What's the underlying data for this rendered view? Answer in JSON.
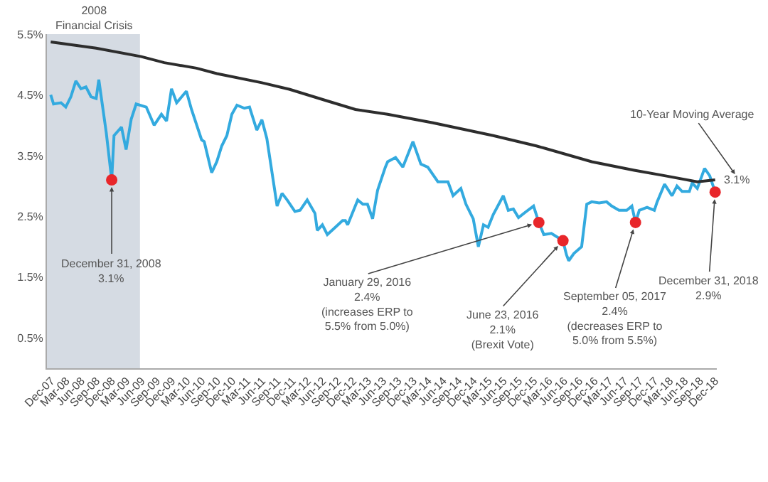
{
  "chart_data": {
    "type": "line",
    "xlim": [
      "2007-12-05",
      "2019-01-10"
    ],
    "ylim": [
      0,
      5.5
    ],
    "yticks": [
      {
        "value": 0.5,
        "label": "0.5%"
      },
      {
        "value": 1.5,
        "label": "1.5%"
      },
      {
        "value": 2.5,
        "label": "2.5%"
      },
      {
        "value": 3.5,
        "label": "3.5%"
      },
      {
        "value": 4.5,
        "label": "4.5%"
      },
      {
        "value": 5.5,
        "label": "5.5%"
      }
    ],
    "xticks": [
      {
        "value": "2007-12-31",
        "label": "Dec-07"
      },
      {
        "value": "2008-03-31",
        "label": "Mar-08"
      },
      {
        "value": "2008-06-30",
        "label": "Jun-08"
      },
      {
        "value": "2008-09-30",
        "label": "Sep-08"
      },
      {
        "value": "2008-12-31",
        "label": "Dec-08"
      },
      {
        "value": "2009-03-31",
        "label": "Mar-09"
      },
      {
        "value": "2009-06-30",
        "label": "Jun-09"
      },
      {
        "value": "2009-09-30",
        "label": "Sep-09"
      },
      {
        "value": "2009-12-31",
        "label": "Dec-09"
      },
      {
        "value": "2010-03-31",
        "label": "Mar-10"
      },
      {
        "value": "2010-06-30",
        "label": "Jun-10"
      },
      {
        "value": "2010-09-30",
        "label": "Sep-10"
      },
      {
        "value": "2010-12-31",
        "label": "Dec-10"
      },
      {
        "value": "2011-03-31",
        "label": "Mar-11"
      },
      {
        "value": "2011-06-30",
        "label": "Jun-11"
      },
      {
        "value": "2011-09-30",
        "label": "Sep-11"
      },
      {
        "value": "2011-12-31",
        "label": "Dec-11"
      },
      {
        "value": "2012-03-31",
        "label": "Mar-12"
      },
      {
        "value": "2012-06-30",
        "label": "Jun-12"
      },
      {
        "value": "2012-09-30",
        "label": "Sep-12"
      },
      {
        "value": "2012-12-31",
        "label": "Dec-12"
      },
      {
        "value": "2013-03-31",
        "label": "Mar-13"
      },
      {
        "value": "2013-06-30",
        "label": "Jun-13"
      },
      {
        "value": "2013-09-30",
        "label": "Sep-13"
      },
      {
        "value": "2013-12-31",
        "label": "Dec-13"
      },
      {
        "value": "2014-03-31",
        "label": "Mar-14"
      },
      {
        "value": "2014-06-30",
        "label": "Jun-14"
      },
      {
        "value": "2014-09-30",
        "label": "Sep-14"
      },
      {
        "value": "2014-12-31",
        "label": "Dec-14"
      },
      {
        "value": "2015-03-31",
        "label": "Mar-15"
      },
      {
        "value": "2015-06-30",
        "label": "Jun-15"
      },
      {
        "value": "2015-09-30",
        "label": "Sep-15"
      },
      {
        "value": "2015-12-31",
        "label": "Dec-15"
      },
      {
        "value": "2016-03-31",
        "label": "Mar-16"
      },
      {
        "value": "2016-06-30",
        "label": "Jun-16"
      },
      {
        "value": "2016-09-30",
        "label": "Sep-16"
      },
      {
        "value": "2016-12-31",
        "label": "Dec-16"
      },
      {
        "value": "2017-03-31",
        "label": "Mar-17"
      },
      {
        "value": "2017-06-30",
        "label": "Jun-17"
      },
      {
        "value": "2017-09-30",
        "label": "Sep-17"
      },
      {
        "value": "2017-12-31",
        "label": "Dec-17"
      },
      {
        "value": "2018-03-31",
        "label": "Mar-18"
      },
      {
        "value": "2018-06-30",
        "label": "Jun-18"
      },
      {
        "value": "2018-09-30",
        "label": "Sep-18"
      },
      {
        "value": "2018-12-31",
        "label": "Dec-18"
      }
    ],
    "grid": false,
    "legend": false,
    "bands": [
      {
        "axis": "x",
        "from": "2007-12-05",
        "to": "2009-06-20",
        "label": "2008\nFinancial Crisis",
        "color": "#d5dbe3"
      }
    ],
    "series": [
      {
        "color": "#33aadf",
        "marker": "none",
        "x": [
          "2007-12-28",
          "2008-01-14",
          "2008-02-28",
          "2008-03-28",
          "2008-04-28",
          "2008-05-28",
          "2008-06-28",
          "2008-07-28",
          "2008-08-28",
          "2008-09-28",
          "2008-10-14",
          "2008-11-28",
          "2008-12-31",
          "2009-01-14",
          "2009-02-28",
          "2009-03-28",
          "2009-04-28",
          "2009-05-28",
          "2009-07-28",
          "2009-09-14",
          "2009-10-28",
          "2009-11-28",
          "2009-12-28",
          "2010-01-28",
          "2010-03-28",
          "2010-04-28",
          "2010-06-28",
          "2010-07-14",
          "2010-08-28",
          "2010-09-28",
          "2010-10-28",
          "2010-11-28",
          "2010-12-28",
          "2011-01-28",
          "2011-03-14",
          "2011-04-14",
          "2011-05-28",
          "2011-06-28",
          "2011-07-28",
          "2011-09-28",
          "2011-10-28",
          "2011-11-28",
          "2012-01-14",
          "2012-02-14",
          "2012-03-28",
          "2012-05-14",
          "2012-05-28",
          "2012-06-28",
          "2012-07-28",
          "2012-09-14",
          "2012-10-28",
          "2012-11-14",
          "2012-11-28",
          "2013-01-28",
          "2013-02-28",
          "2013-03-28",
          "2013-04-28",
          "2013-05-28",
          "2013-07-14",
          "2013-07-28",
          "2013-09-14",
          "2013-10-28",
          "2013-12-28",
          "2014-02-14",
          "2014-03-28",
          "2014-05-28",
          "2014-07-28",
          "2014-08-28",
          "2014-10-14",
          "2014-11-14",
          "2014-12-28",
          "2015-01-28",
          "2015-02-28",
          "2015-03-28",
          "2015-04-28",
          "2015-06-28",
          "2015-07-28",
          "2015-08-28",
          "2015-09-28",
          "2015-11-14",
          "2015-12-28",
          "2016-01-29",
          "2016-02-28",
          "2016-04-14",
          "2016-06-23",
          "2016-07-14",
          "2016-07-28",
          "2016-08-28",
          "2016-10-14",
          "2016-11-14",
          "2016-12-14",
          "2017-01-28",
          "2017-03-14",
          "2017-04-14",
          "2017-05-28",
          "2017-07-14",
          "2017-08-14",
          "2017-09-05",
          "2017-09-28",
          "2017-11-14",
          "2017-12-28",
          "2018-01-14",
          "2018-02-28",
          "2018-04-14",
          "2018-05-14",
          "2018-06-14",
          "2018-07-28",
          "2018-08-14",
          "2018-09-14",
          "2018-10-28",
          "2018-11-28",
          "2018-12-31"
        ],
        "values": [
          4.5,
          4.35,
          4.37,
          4.3,
          4.47,
          4.73,
          4.6,
          4.63,
          4.47,
          4.44,
          4.75,
          3.88,
          3.1,
          3.83,
          3.97,
          3.6,
          4.1,
          4.35,
          4.3,
          4.0,
          4.18,
          4.07,
          4.6,
          4.37,
          4.56,
          4.26,
          3.76,
          3.73,
          3.22,
          3.4,
          3.66,
          3.83,
          4.18,
          4.33,
          4.28,
          4.3,
          3.92,
          4.09,
          3.78,
          2.67,
          2.88,
          2.77,
          2.58,
          2.6,
          2.77,
          2.55,
          2.27,
          2.36,
          2.2,
          2.32,
          2.43,
          2.43,
          2.36,
          2.77,
          2.7,
          2.7,
          2.46,
          2.93,
          3.31,
          3.4,
          3.47,
          3.31,
          3.73,
          3.36,
          3.31,
          3.07,
          3.07,
          2.84,
          2.96,
          2.7,
          2.46,
          2.0,
          2.36,
          2.32,
          2.53,
          2.84,
          2.6,
          2.62,
          2.48,
          2.58,
          2.67,
          2.4,
          2.2,
          2.22,
          2.1,
          1.87,
          1.77,
          1.89,
          2.0,
          2.7,
          2.74,
          2.72,
          2.74,
          2.67,
          2.6,
          2.6,
          2.67,
          2.4,
          2.6,
          2.65,
          2.6,
          2.74,
          3.03,
          2.84,
          3.0,
          2.91,
          2.91,
          3.05,
          2.96,
          3.29,
          3.17,
          2.9
        ]
      },
      {
        "name": "10-Year Moving Average",
        "color": "#2d2d2d",
        "marker": "none",
        "x": [
          "2007-12-28",
          "2008-09-28",
          "2009-06-28",
          "2009-11-14",
          "2010-05-28",
          "2010-09-28",
          "2011-06-28",
          "2011-12-14",
          "2012-07-28",
          "2013-01-14",
          "2013-07-28",
          "2014-04-28",
          "2015-04-28",
          "2016-01-14",
          "2016-12-14",
          "2017-08-28",
          "2018-02-28",
          "2018-09-14",
          "2018-12-31"
        ],
        "values": [
          5.37,
          5.27,
          5.13,
          5.03,
          4.94,
          4.85,
          4.7,
          4.59,
          4.4,
          4.26,
          4.18,
          4.04,
          3.83,
          3.66,
          3.4,
          3.26,
          3.17,
          3.07,
          3.1
        ],
        "value_labels": [
          null,
          null,
          null,
          null,
          null,
          null,
          null,
          null,
          null,
          null,
          null,
          null,
          null,
          null,
          null,
          null,
          null,
          null,
          "3.1%"
        ]
      },
      {
        "type": "scatter",
        "color": "#e8262a",
        "marker": "circle",
        "x": [
          "2008-12-31",
          "2016-01-29",
          "2016-06-23",
          "2017-09-05",
          "2018-12-31"
        ],
        "values": [
          3.1,
          2.4,
          2.1,
          2.4,
          2.9
        ]
      }
    ],
    "annotations": [
      {
        "text": "December 31, 2008\n3.1%",
        "x": "2008-12-31",
        "y": 3.1
      },
      {
        "text": "January 29, 2016\n2.4%\n(increases ERP to\n5.5% from 5.0%)",
        "x": "2016-01-29",
        "y": 2.4
      },
      {
        "text": "June 23, 2016\n2.1%\n(Brexit Vote)",
        "x": "2016-06-23",
        "y": 2.1
      },
      {
        "text": "September 05, 2017\n2.4%\n(decreases ERP to\n5.0% from 5.5%)",
        "x": "2017-09-05",
        "y": 2.4
      },
      {
        "text": "December 31, 2018\n2.9%",
        "x": "2018-12-31",
        "y": 2.9
      }
    ]
  }
}
